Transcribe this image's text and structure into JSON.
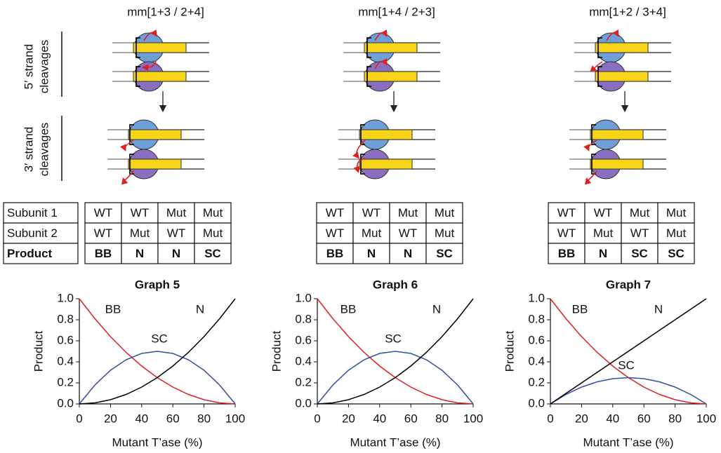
{
  "panels": [
    {
      "title": "mm[1+3 / 2+4]",
      "table": {
        "rows": [
          [
            "WT",
            "WT",
            "Mut",
            "Mut"
          ],
          [
            "WT",
            "Mut",
            "WT",
            "Mut"
          ],
          [
            "BB",
            "N",
            "N",
            "SC"
          ]
        ]
      }
    },
    {
      "title": "mm[1+4 / 2+3]",
      "table": {
        "rows": [
          [
            "WT",
            "WT",
            "Mut",
            "Mut"
          ],
          [
            "WT",
            "Mut",
            "WT",
            "Mut"
          ],
          [
            "BB",
            "N",
            "N",
            "SC"
          ]
        ]
      }
    },
    {
      "title": "mm[1+2 / 3+4]",
      "table": {
        "rows": [
          [
            "WT",
            "WT",
            "Mut",
            "Mut"
          ],
          [
            "WT",
            "Mut",
            "WT",
            "Mut"
          ],
          [
            "BB",
            "N",
            "SC",
            "SC"
          ]
        ]
      }
    }
  ],
  "side_labels": [
    [
      "5′ strand",
      "cleavages"
    ],
    [
      "3′ strand",
      "cleavages"
    ]
  ],
  "row_labels": [
    "Subunit 1",
    "Subunit 2",
    "Product"
  ],
  "chart_data": [
    {
      "type": "line",
      "title": "Graph 5",
      "x_label": "Mutant T’ase (%)",
      "y_label": "Product",
      "x": [
        0,
        10,
        20,
        30,
        40,
        50,
        60,
        70,
        80,
        90,
        100
      ],
      "xlim": [
        0,
        100
      ],
      "ylim": [
        0,
        1
      ],
      "xticks": [
        0,
        20,
        40,
        60,
        80,
        100
      ],
      "yticks": [
        {
          "value": 0,
          "label": "0.0"
        },
        0.2,
        0.4,
        0.6,
        0.8,
        {
          "value": 1,
          "label": "1.0"
        }
      ],
      "series": [
        {
          "name": "BB",
          "color": "#e02020",
          "values": [
            1,
            0.81,
            0.64,
            0.49,
            0.36,
            0.25,
            0.16,
            0.09,
            0.04,
            0.01,
            0
          ]
        },
        {
          "name": "N",
          "color": "#2f4f9f",
          "values": [
            0,
            0.18,
            0.32,
            0.42,
            0.48,
            0.5,
            0.48,
            0.42,
            0.32,
            0.18,
            0
          ]
        },
        {
          "name": "SC",
          "color": "#000000",
          "values": [
            0,
            0.01,
            0.04,
            0.09,
            0.16,
            0.25,
            0.36,
            0.49,
            0.64,
            0.81,
            1
          ]
        }
      ]
    },
    {
      "type": "line",
      "title": "Graph 6",
      "x_label": "Mutant T’ase (%)",
      "y_label": "Product",
      "x": [
        0,
        10,
        20,
        30,
        40,
        50,
        60,
        70,
        80,
        90,
        100
      ],
      "xlim": [
        0,
        100
      ],
      "ylim": [
        0,
        1
      ],
      "xticks": [
        0,
        20,
        40,
        60,
        80,
        100
      ],
      "yticks": [
        {
          "value": 0,
          "label": "0.0"
        },
        0.2,
        0.4,
        0.6,
        0.8,
        {
          "value": 1,
          "label": "1.0"
        }
      ],
      "series": [
        {
          "name": "BB",
          "color": "#e02020",
          "values": [
            1,
            0.81,
            0.64,
            0.49,
            0.36,
            0.25,
            0.16,
            0.09,
            0.04,
            0.01,
            0
          ]
        },
        {
          "name": "N",
          "color": "#2f4f9f",
          "values": [
            0,
            0.18,
            0.32,
            0.42,
            0.48,
            0.5,
            0.48,
            0.42,
            0.32,
            0.18,
            0
          ]
        },
        {
          "name": "SC",
          "color": "#000000",
          "values": [
            0,
            0.01,
            0.04,
            0.09,
            0.16,
            0.25,
            0.36,
            0.49,
            0.64,
            0.81,
            1
          ]
        }
      ]
    },
    {
      "type": "line",
      "title": "Graph 7",
      "x_label": "Mutant T’ase (%)",
      "y_label": "Product",
      "x": [
        0,
        10,
        20,
        30,
        40,
        50,
        60,
        70,
        80,
        90,
        100
      ],
      "xlim": [
        0,
        100
      ],
      "ylim": [
        0,
        1
      ],
      "xticks": [
        0,
        20,
        40,
        60,
        80,
        100
      ],
      "yticks": [
        {
          "value": 0,
          "label": "0.0"
        },
        0.2,
        0.4,
        0.6,
        0.8,
        {
          "value": 1,
          "label": "1.0"
        }
      ],
      "series": [
        {
          "name": "BB",
          "color": "#e02020",
          "values": [
            1,
            0.81,
            0.64,
            0.49,
            0.36,
            0.25,
            0.16,
            0.09,
            0.04,
            0.01,
            0
          ]
        },
        {
          "name": "N",
          "color": "#2f4f9f",
          "values": [
            0,
            0.09,
            0.16,
            0.21,
            0.24,
            0.25,
            0.24,
            0.21,
            0.16,
            0.09,
            0
          ]
        },
        {
          "name": "SC",
          "color": "#000000",
          "values": [
            0,
            0.1,
            0.2,
            0.3,
            0.4,
            0.5,
            0.6,
            0.7,
            0.8,
            0.9,
            1
          ]
        }
      ]
    }
  ]
}
